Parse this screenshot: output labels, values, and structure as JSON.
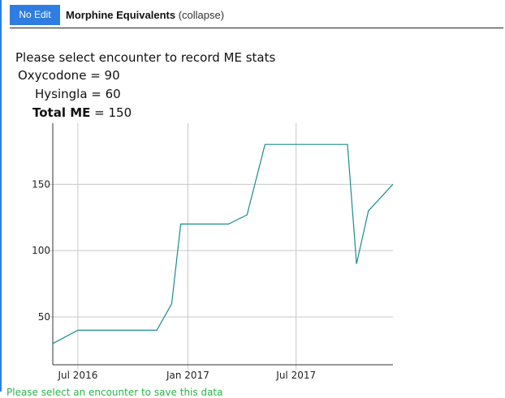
{
  "header": {
    "edit_button": "No Edit",
    "title": "Morphine Equivalents",
    "collapse": "(collapse)"
  },
  "prompt": "Please select encounter to record ME stats",
  "medications": [
    {
      "name": "Oxycodone",
      "value": "90"
    },
    {
      "name": "Hysingla",
      "value": "60"
    }
  ],
  "total": {
    "label": "Total ME",
    "value": "150"
  },
  "bottom_note": "Please select an encounter to save this data",
  "colors": {
    "accent": "#2f7de1",
    "line": "#1a8c8c",
    "note": "#2db34a"
  },
  "chart_data": {
    "type": "line",
    "title": "",
    "xlabel": "",
    "ylabel": "",
    "x_ticks": [
      {
        "label": "Jul 2016",
        "date": "2016-07-01"
      },
      {
        "label": "Jan 2017",
        "date": "2017-01-01"
      },
      {
        "label": "Jul 2017",
        "date": "2017-07-01"
      }
    ],
    "y_ticks": [
      50,
      100,
      150
    ],
    "xlim": [
      "2016-05-20",
      "2017-12-10"
    ],
    "ylim": [
      14,
      196
    ],
    "grid": true,
    "series": [
      {
        "color": "#1a8c8c",
        "points": [
          {
            "x": "2016-05-20",
            "y": 30
          },
          {
            "x": "2016-07-01",
            "y": 40
          },
          {
            "x": "2016-11-10",
            "y": 40
          },
          {
            "x": "2016-12-05",
            "y": 60
          },
          {
            "x": "2016-12-20",
            "y": 120
          },
          {
            "x": "2017-03-10",
            "y": 120
          },
          {
            "x": "2017-04-10",
            "y": 127
          },
          {
            "x": "2017-05-10",
            "y": 180
          },
          {
            "x": "2017-09-25",
            "y": 180
          },
          {
            "x": "2017-10-10",
            "y": 90
          },
          {
            "x": "2017-10-30",
            "y": 130
          },
          {
            "x": "2017-12-10",
            "y": 150
          }
        ]
      }
    ]
  }
}
